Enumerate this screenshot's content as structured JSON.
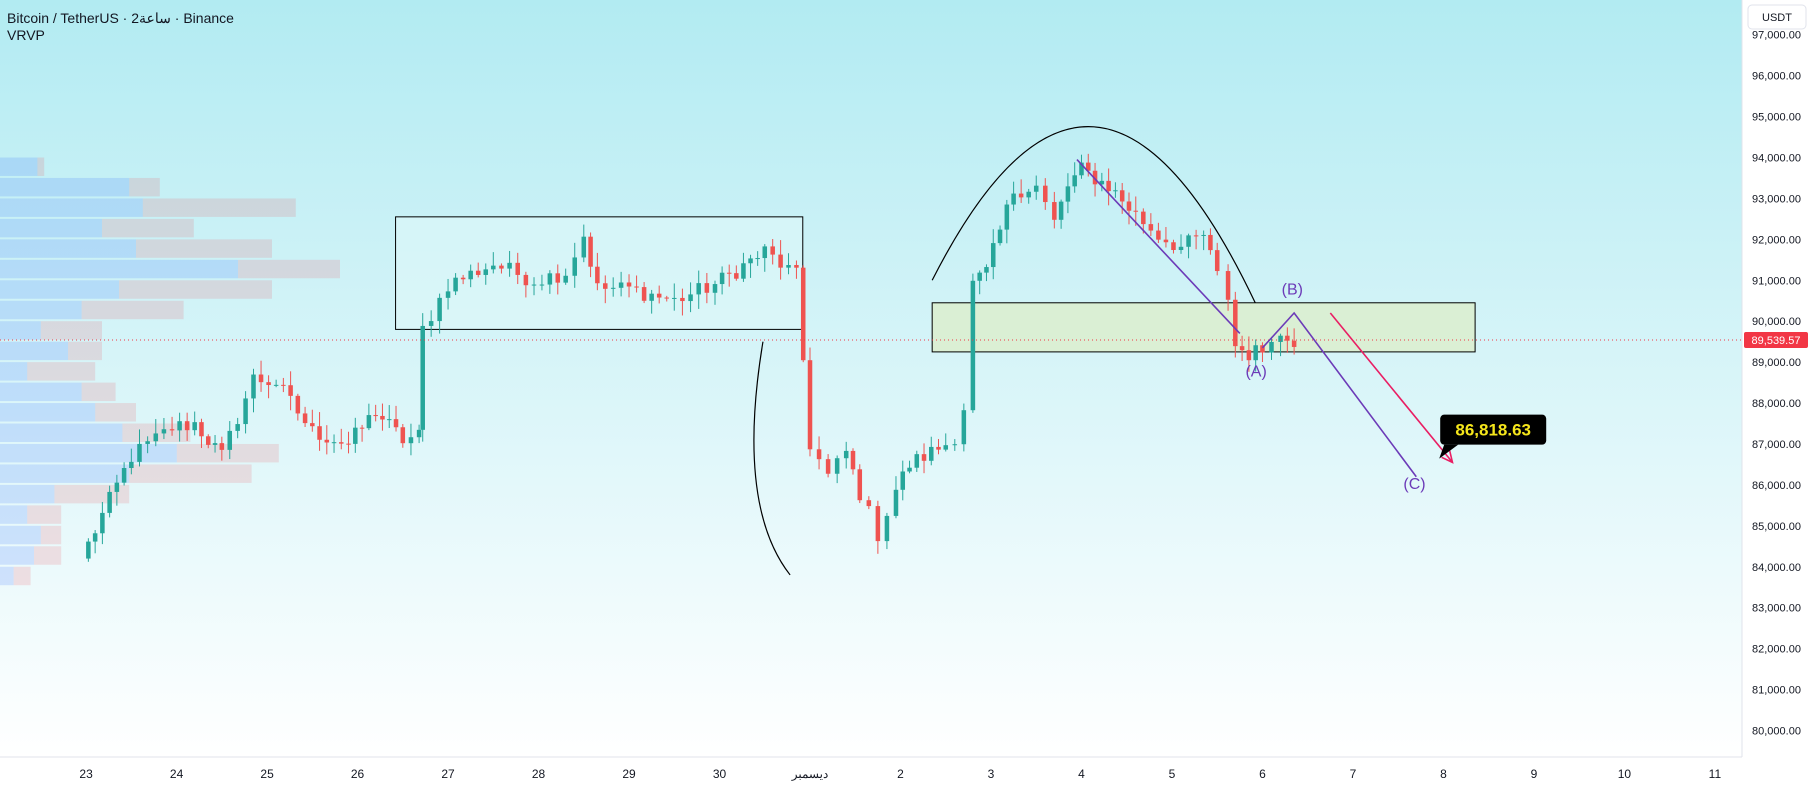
{
  "header": {
    "title": "Bitcoin / TetherUS · 2ساعة · Binance",
    "indicator": "VRVP"
  },
  "price_scale": {
    "unit": "USDT",
    "current_price": "89,539.57"
  },
  "colors": {
    "up": "#26a69a",
    "down": "#ef5350",
    "current_price": "#f23645",
    "wave_line": "#6c3bb8",
    "projection_arrow": "#e91e63",
    "target_box": "#000000",
    "target_text": "#f5e61b",
    "background_top": "#b2ebf2",
    "background_bottom": "#ffffff"
  },
  "chart_data": {
    "type": "candlestick",
    "title": "Bitcoin / TetherUS · 2ساعة · Binance",
    "xlabel": "",
    "ylabel": "",
    "ylim": [
      79400,
      97800
    ],
    "x_tick_labels": [
      "23",
      "24",
      "25",
      "26",
      "27",
      "28",
      "29",
      "30",
      "ديسمبر",
      "2",
      "3",
      "4",
      "5",
      "6",
      "7",
      "8",
      "9",
      "10",
      "11"
    ],
    "y_tick_labels": [
      "97,000.00",
      "96,000.00",
      "95,000.00",
      "94,000.00",
      "93,000.00",
      "92,000.00",
      "91,000.00",
      "90,000.00",
      "89,000.00",
      "88,000.00",
      "87,000.00",
      "86,000.00",
      "85,000.00",
      "84,000.00",
      "83,000.00",
      "82,000.00",
      "81,000.00",
      "80,000.00"
    ],
    "y_tick_values": [
      97000,
      96000,
      95000,
      94000,
      93000,
      92000,
      91000,
      90000,
      89000,
      88000,
      87000,
      86000,
      85000,
      84000,
      83000,
      82000,
      81000,
      80000
    ],
    "current_price": 89539.57,
    "target_price": 86818.63,
    "anchors": [
      {
        "d": 22.95,
        "p": 84200
      },
      {
        "d": 23.1,
        "p": 84900
      },
      {
        "d": 23.5,
        "p": 86700
      },
      {
        "d": 23.95,
        "p": 87400
      },
      {
        "d": 24.2,
        "p": 87500
      },
      {
        "d": 24.5,
        "p": 86700
      },
      {
        "d": 24.85,
        "p": 88600
      },
      {
        "d": 25.1,
        "p": 88500
      },
      {
        "d": 25.5,
        "p": 87300
      },
      {
        "d": 25.9,
        "p": 87000
      },
      {
        "d": 26.2,
        "p": 87800
      },
      {
        "d": 26.5,
        "p": 87100
      },
      {
        "d": 26.68,
        "p": 87200
      },
      {
        "d": 26.72,
        "p": 89800
      },
      {
        "d": 27.0,
        "p": 90900
      },
      {
        "d": 27.5,
        "p": 91400
      },
      {
        "d": 27.95,
        "p": 91000
      },
      {
        "d": 28.3,
        "p": 91200
      },
      {
        "d": 28.5,
        "p": 92100
      },
      {
        "d": 28.65,
        "p": 90800
      },
      {
        "d": 29.0,
        "p": 90800
      },
      {
        "d": 29.5,
        "p": 90500
      },
      {
        "d": 29.95,
        "p": 90900
      },
      {
        "d": 30.5,
        "p": 91700
      },
      {
        "d": 30.85,
        "p": 91100
      },
      {
        "d": 31.0,
        "p": 87000
      },
      {
        "d": 31.2,
        "p": 86200
      },
      {
        "d": 31.4,
        "p": 86800
      },
      {
        "d": 31.55,
        "p": 85800
      },
      {
        "d": 31.75,
        "p": 84800
      },
      {
        "d": 31.95,
        "p": 85900
      },
      {
        "d": 32.1,
        "p": 86500
      },
      {
        "d": 32.5,
        "p": 87000
      },
      {
        "d": 32.6,
        "p": 87200
      },
      {
        "d": 32.7,
        "p": 87900
      },
      {
        "d": 32.8,
        "p": 90900
      },
      {
        "d": 32.95,
        "p": 91200
      },
      {
        "d": 33.25,
        "p": 93200
      },
      {
        "d": 33.5,
        "p": 93300
      },
      {
        "d": 33.7,
        "p": 92400
      },
      {
        "d": 33.85,
        "p": 93300
      },
      {
        "d": 34.0,
        "p": 93700
      },
      {
        "d": 34.3,
        "p": 93300
      },
      {
        "d": 34.6,
        "p": 92600
      },
      {
        "d": 34.85,
        "p": 92100
      },
      {
        "d": 35.1,
        "p": 91800
      },
      {
        "d": 35.35,
        "p": 92100
      },
      {
        "d": 35.5,
        "p": 91100
      },
      {
        "d": 35.62,
        "p": 90600
      },
      {
        "d": 35.7,
        "p": 89400
      },
      {
        "d": 35.85,
        "p": 89200
      },
      {
        "d": 36.0,
        "p": 89300
      },
      {
        "d": 36.1,
        "p": 89700
      },
      {
        "d": 36.2,
        "p": 89600
      },
      {
        "d": 36.35,
        "p": 89540
      }
    ],
    "volume_profile": [
      {
        "p": 94000,
        "buy": 0.11,
        "sell": 0.02
      },
      {
        "p": 93500,
        "buy": 0.38,
        "sell": 0.09
      },
      {
        "p": 93000,
        "buy": 0.42,
        "sell": 0.45
      },
      {
        "p": 92500,
        "buy": 0.3,
        "sell": 0.27
      },
      {
        "p": 92000,
        "buy": 0.4,
        "sell": 0.4
      },
      {
        "p": 91500,
        "buy": 0.7,
        "sell": 0.3
      },
      {
        "p": 91000,
        "buy": 0.35,
        "sell": 0.45
      },
      {
        "p": 90500,
        "buy": 0.24,
        "sell": 0.3
      },
      {
        "p": 90000,
        "buy": 0.12,
        "sell": 0.18
      },
      {
        "p": 89500,
        "buy": 0.2,
        "sell": 0.1
      },
      {
        "p": 89000,
        "buy": 0.08,
        "sell": 0.2
      },
      {
        "p": 88500,
        "buy": 0.24,
        "sell": 0.1
      },
      {
        "p": 88000,
        "buy": 0.28,
        "sell": 0.12
      },
      {
        "p": 87500,
        "buy": 0.36,
        "sell": 0.2
      },
      {
        "p": 87000,
        "buy": 0.52,
        "sell": 0.3
      },
      {
        "p": 86500,
        "buy": 0.38,
        "sell": 0.36
      },
      {
        "p": 86000,
        "buy": 0.16,
        "sell": 0.22
      },
      {
        "p": 85500,
        "buy": 0.08,
        "sell": 0.1
      },
      {
        "p": 85000,
        "buy": 0.12,
        "sell": 0.06
      },
      {
        "p": 84500,
        "buy": 0.1,
        "sell": 0.08
      },
      {
        "p": 84000,
        "buy": 0.04,
        "sell": 0.05
      }
    ],
    "annotations": {
      "consolidation_box": {
        "d1": 26.42,
        "d2": 30.92,
        "p_top": 92550,
        "p_bottom": 89800
      },
      "support_zone": {
        "d1": 32.35,
        "d2": 38.35,
        "p_top": 90450,
        "p_bottom": 89250
      },
      "top_arc": {
        "d1": 32.35,
        "d2": 35.92,
        "p_start": 91000,
        "p_peak": 94750,
        "p_end": 90450
      },
      "bottom_arc": {
        "d1": 30.48,
        "d2": 30.78,
        "p_start": 89500,
        "p_bottom": 85500,
        "p_end": 83800
      },
      "downtrend_line": {
        "d1": 33.95,
        "p1": 93950,
        "d2": 35.75,
        "p2": 89700
      },
      "wave_path": [
        {
          "d": 36.0,
          "p": 89350
        },
        {
          "d": 36.35,
          "p": 90200
        },
        {
          "d": 37.7,
          "p": 86200
        }
      ],
      "projection_arrow": {
        "d1": 36.75,
        "p1": 90200,
        "d2": 38.1,
        "p2": 86550
      },
      "wave_labels": [
        {
          "text": "(A)",
          "d": 35.93,
          "p": 88650
        },
        {
          "text": "(B)",
          "d": 36.33,
          "p": 90650
        },
        {
          "text": "(C)",
          "d": 37.68,
          "p": 85900
        }
      ],
      "target_label": {
        "text": "86,818.63",
        "d": 38.55,
        "p": 87350
      }
    }
  }
}
